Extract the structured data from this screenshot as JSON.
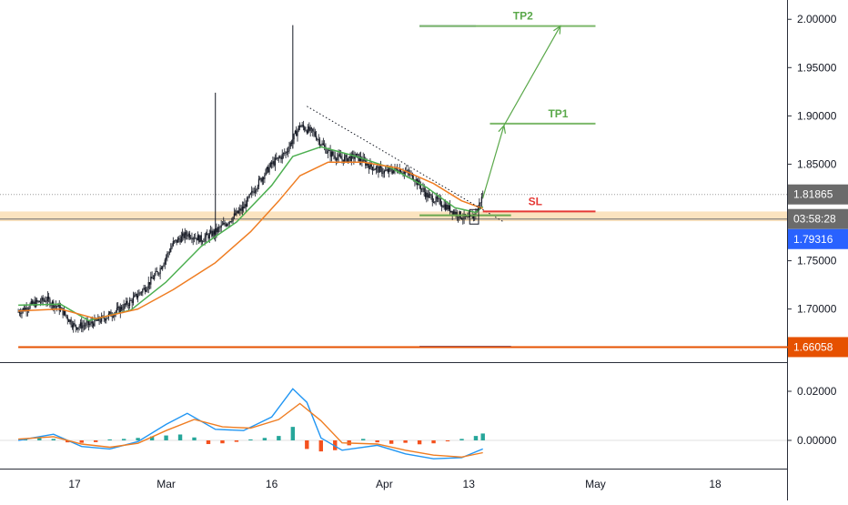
{
  "chart_data": {
    "type": "candlestick",
    "x_axis": {
      "tick_labels": [
        "17",
        "Mar",
        "16",
        "Apr",
        "13",
        "May",
        "18"
      ],
      "tick_dates": [
        "2020-02-17",
        "2020-03-01",
        "2020-03-16",
        "2020-04-01",
        "2020-04-13",
        "2020-05-01",
        "2020-05-18"
      ]
    },
    "price_axis": {
      "ylim": [
        1.645,
        2.02
      ],
      "tick_values": [
        2.0,
        1.95,
        1.9,
        1.85,
        1.75,
        1.7
      ],
      "tick_labels": [
        "2.00000",
        "1.95000",
        "1.90000",
        "1.85000",
        "1.75000",
        "1.70000"
      ]
    },
    "price_badges": {
      "last_price": {
        "label": "1.81865",
        "value": 1.81865,
        "color": "#6b6b6b"
      },
      "countdown": {
        "label": "03:58:28",
        "color": "#6b6b6b"
      },
      "current": {
        "label": "1.79316",
        "value": 1.79316,
        "color": "#2962ff"
      },
      "support_line": {
        "label": "1.66058",
        "value": 1.66058,
        "color": "#e65100"
      }
    },
    "ohlc_close_path": [
      [
        "2020-02-09",
        1.697
      ],
      [
        "2020-02-11",
        1.705
      ],
      [
        "2020-02-13",
        1.71
      ],
      [
        "2020-02-15",
        1.7
      ],
      [
        "2020-02-17",
        1.682
      ],
      [
        "2020-02-19",
        1.684
      ],
      [
        "2020-02-21",
        1.69
      ],
      [
        "2020-02-23",
        1.698
      ],
      [
        "2020-02-25",
        1.708
      ],
      [
        "2020-02-27",
        1.722
      ],
      [
        "2020-02-29",
        1.74
      ],
      [
        "2020-03-02",
        1.768
      ],
      [
        "2020-03-04",
        1.778
      ],
      [
        "2020-03-06",
        1.772
      ],
      [
        "2020-03-08",
        1.78
      ],
      [
        "2020-03-10",
        1.792
      ],
      [
        "2020-03-12",
        1.805
      ],
      [
        "2020-03-14",
        1.83
      ],
      [
        "2020-03-16",
        1.85
      ],
      [
        "2020-03-18",
        1.862
      ],
      [
        "2020-03-20",
        1.89
      ],
      [
        "2020-03-22",
        1.882
      ],
      [
        "2020-03-24",
        1.862
      ],
      [
        "2020-03-26",
        1.855
      ],
      [
        "2020-03-28",
        1.858
      ],
      [
        "2020-03-30",
        1.848
      ],
      [
        "2020-04-01",
        1.842
      ],
      [
        "2020-04-03",
        1.845
      ],
      [
        "2020-04-05",
        1.838
      ],
      [
        "2020-04-07",
        1.818
      ],
      [
        "2020-04-09",
        1.81
      ],
      [
        "2020-04-11",
        1.8
      ],
      [
        "2020-04-13",
        1.792
      ],
      [
        "2020-04-14",
        1.8
      ],
      [
        "2020-04-15",
        1.818
      ]
    ],
    "spikes": [
      {
        "date": "2020-03-08",
        "high": 1.924
      },
      {
        "date": "2020-03-19",
        "high": 1.994
      }
    ],
    "moving_averages": [
      {
        "color": "#4caf50",
        "values": [
          [
            "2020-02-09",
            1.704
          ],
          [
            "2020-02-15",
            1.705
          ],
          [
            "2020-02-19",
            1.688
          ],
          [
            "2020-02-25",
            1.699
          ],
          [
            "2020-03-01",
            1.728
          ],
          [
            "2020-03-06",
            1.765
          ],
          [
            "2020-03-11",
            1.79
          ],
          [
            "2020-03-16",
            1.828
          ],
          [
            "2020-03-19",
            1.858
          ],
          [
            "2020-03-23",
            1.868
          ],
          [
            "2020-03-28",
            1.858
          ],
          [
            "2020-04-02",
            1.846
          ],
          [
            "2020-04-07",
            1.826
          ],
          [
            "2020-04-11",
            1.805
          ],
          [
            "2020-04-14",
            1.8
          ],
          [
            "2020-04-15",
            1.806
          ]
        ]
      },
      {
        "color": "#ef7d22",
        "values": [
          [
            "2020-02-09",
            1.698
          ],
          [
            "2020-02-15",
            1.7
          ],
          [
            "2020-02-20",
            1.69
          ],
          [
            "2020-02-26",
            1.7
          ],
          [
            "2020-03-02",
            1.72
          ],
          [
            "2020-03-08",
            1.748
          ],
          [
            "2020-03-13",
            1.78
          ],
          [
            "2020-03-17",
            1.812
          ],
          [
            "2020-03-20",
            1.838
          ],
          [
            "2020-03-24",
            1.852
          ],
          [
            "2020-03-29",
            1.852
          ],
          [
            "2020-04-03",
            1.846
          ],
          [
            "2020-04-08",
            1.83
          ],
          [
            "2020-04-12",
            1.812
          ],
          [
            "2020-04-15",
            1.804
          ]
        ]
      }
    ],
    "trendline": {
      "style": "dotted",
      "points": [
        [
          "2020-03-21",
          1.91
        ],
        [
          "2020-04-18",
          1.79
        ]
      ]
    },
    "support_zone": {
      "low": 1.791,
      "high": 1.801,
      "color": "#fbe3bf"
    },
    "levels": [
      {
        "label": "TP2",
        "value": 1.993,
        "from": "2020-04-06",
        "to": "2020-05-01",
        "color": "#7cb86a",
        "label_color": "#5aa84a"
      },
      {
        "label": "TP1",
        "value": 1.892,
        "from": "2020-04-16",
        "to": "2020-05-01",
        "color": "#7cb86a",
        "label_color": "#5aa84a"
      },
      {
        "label": "SL",
        "value": 1.801,
        "from": "2020-04-15",
        "to": "2020-05-01",
        "color": "#e53935",
        "label_color": "#e53935"
      },
      {
        "label": "",
        "value": 1.797,
        "from": "2020-04-06",
        "to": "2020-04-19",
        "color": "#6aa84f"
      },
      {
        "label": "",
        "value": 1.66058,
        "from": "2020-02-09",
        "to": "2020-05-31",
        "color": "#e65100"
      }
    ],
    "blue_marks": [
      {
        "value": 1.993,
        "from": "2020-04-06",
        "to": "2020-04-14",
        "color": "#5c6bc0"
      },
      {
        "value": 1.661,
        "from": "2020-04-06",
        "to": "2020-04-19",
        "color": "#5c6bc0"
      }
    ],
    "projection": {
      "color": "#5aa84a",
      "points": [
        [
          "2020-04-15",
          1.815
        ],
        [
          "2020-04-18",
          1.89
        ],
        [
          "2020-04-26",
          1.993
        ]
      ]
    },
    "highlight_box": {
      "from": "2020-04-13",
      "to": "2020-04-14",
      "low": 1.788,
      "high": 1.803
    },
    "macd": {
      "ylim": [
        -0.0115,
        0.0315
      ],
      "tick_values": [
        0.02,
        0.0
      ],
      "tick_labels": [
        "0.02000",
        "0.00000"
      ],
      "macd_line": {
        "color": "#2196f3",
        "values": [
          [
            "2020-02-09",
            0.0
          ],
          [
            "2020-02-14",
            0.0025
          ],
          [
            "2020-02-18",
            -0.0025
          ],
          [
            "2020-02-22",
            -0.0035
          ],
          [
            "2020-02-26",
            -0.0005
          ],
          [
            "2020-03-01",
            0.0065
          ],
          [
            "2020-03-04",
            0.011
          ],
          [
            "2020-03-08",
            0.0045
          ],
          [
            "2020-03-12",
            0.004
          ],
          [
            "2020-03-16",
            0.0095
          ],
          [
            "2020-03-19",
            0.021
          ],
          [
            "2020-03-21",
            0.0155
          ],
          [
            "2020-03-23",
            0.001
          ],
          [
            "2020-03-26",
            -0.004
          ],
          [
            "2020-03-31",
            -0.002
          ],
          [
            "2020-04-04",
            -0.0055
          ],
          [
            "2020-04-08",
            -0.0075
          ],
          [
            "2020-04-12",
            -0.007
          ],
          [
            "2020-04-15",
            -0.0035
          ]
        ]
      },
      "signal_line": {
        "color": "#ef7d22",
        "values": [
          [
            "2020-02-09",
            0.0005
          ],
          [
            "2020-02-14",
            0.0015
          ],
          [
            "2020-02-18",
            -0.0015
          ],
          [
            "2020-02-22",
            -0.0028
          ],
          [
            "2020-02-26",
            -0.0012
          ],
          [
            "2020-03-01",
            0.004
          ],
          [
            "2020-03-05",
            0.0085
          ],
          [
            "2020-03-09",
            0.0055
          ],
          [
            "2020-03-13",
            0.005
          ],
          [
            "2020-03-17",
            0.0085
          ],
          [
            "2020-03-20",
            0.015
          ],
          [
            "2020-03-23",
            0.008
          ],
          [
            "2020-03-26",
            -0.001
          ],
          [
            "2020-03-31",
            -0.0015
          ],
          [
            "2020-04-04",
            -0.004
          ],
          [
            "2020-04-08",
            -0.006
          ],
          [
            "2020-04-12",
            -0.0068
          ],
          [
            "2020-04-15",
            -0.005
          ]
        ]
      },
      "histogram": {
        "positive_color": "#26a69a",
        "negative_color": "#f4511e",
        "values": [
          [
            "2020-02-10",
            0.0008
          ],
          [
            "2020-02-12",
            0.0012
          ],
          [
            "2020-02-14",
            0.0006
          ],
          [
            "2020-02-16",
            -0.0008
          ],
          [
            "2020-02-18",
            -0.001
          ],
          [
            "2020-02-20",
            -0.0007
          ],
          [
            "2020-02-22",
            0.0004
          ],
          [
            "2020-02-24",
            0.0006
          ],
          [
            "2020-02-26",
            0.001
          ],
          [
            "2020-02-28",
            0.0016
          ],
          [
            "2020-03-01",
            0.002
          ],
          [
            "2020-03-03",
            0.0024
          ],
          [
            "2020-03-05",
            0.0012
          ],
          [
            "2020-03-07",
            -0.0015
          ],
          [
            "2020-03-09",
            -0.0012
          ],
          [
            "2020-03-11",
            -0.0006
          ],
          [
            "2020-03-13",
            0.0004
          ],
          [
            "2020-03-15",
            0.001
          ],
          [
            "2020-03-17",
            0.0018
          ],
          [
            "2020-03-19",
            0.0055
          ],
          [
            "2020-03-21",
            -0.0035
          ],
          [
            "2020-03-23",
            -0.0045
          ],
          [
            "2020-03-25",
            -0.004
          ],
          [
            "2020-03-27",
            -0.002
          ],
          [
            "2020-03-29",
            0.0006
          ],
          [
            "2020-03-31",
            -0.0008
          ],
          [
            "2020-04-02",
            -0.0014
          ],
          [
            "2020-04-04",
            -0.001
          ],
          [
            "2020-04-06",
            -0.0016
          ],
          [
            "2020-04-08",
            -0.0012
          ],
          [
            "2020-04-10",
            -0.0004
          ],
          [
            "2020-04-12",
            0.0006
          ],
          [
            "2020-04-14",
            0.0018
          ],
          [
            "2020-04-15",
            0.0028
          ]
        ]
      }
    }
  }
}
